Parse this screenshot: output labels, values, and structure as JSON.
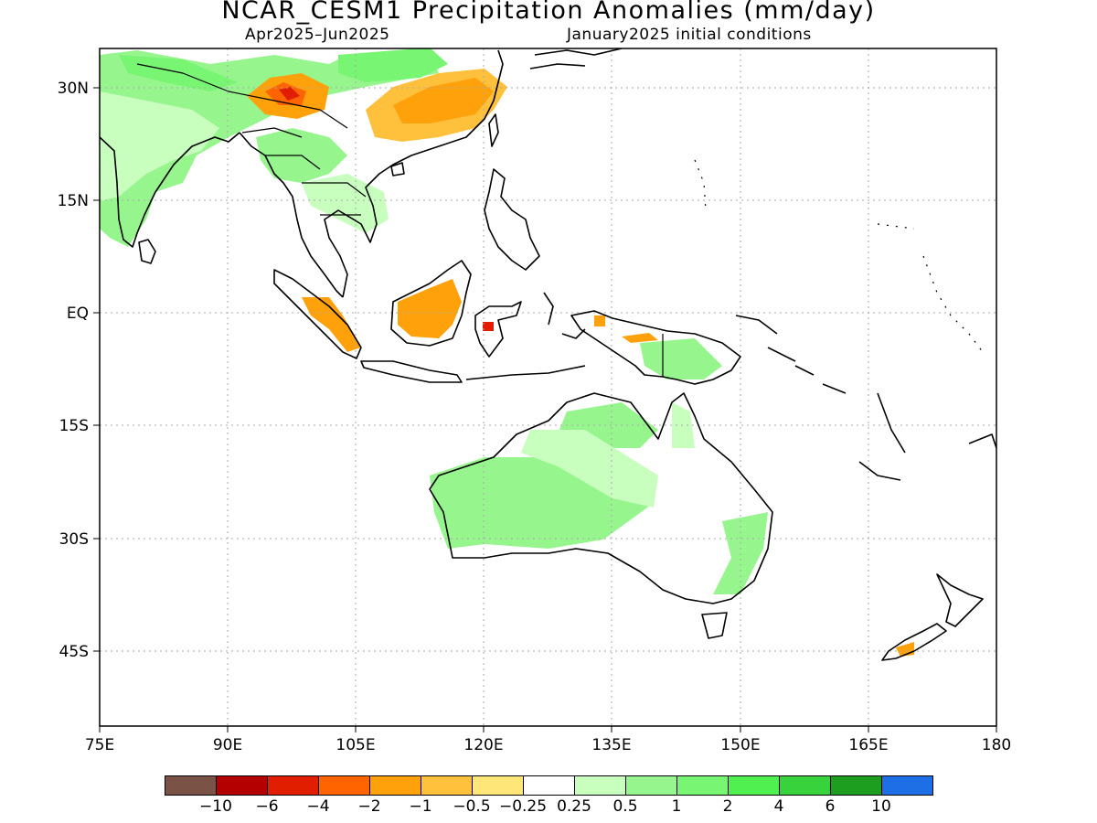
{
  "title": "NCAR_CESM1 Precipitation Anomalies (mm/day)",
  "subtitle_left": "Apr2025–Jun2025",
  "subtitle_right": "January2025 initial conditions",
  "lat_ticks": [
    "30N",
    "15N",
    "EQ",
    "15S",
    "30S",
    "45S"
  ],
  "lon_ticks": [
    "75E",
    "90E",
    "105E",
    "120E",
    "135E",
    "150E",
    "165E",
    "180"
  ],
  "colorbar": {
    "colors": [
      "#7a5246",
      "#b40000",
      "#e11e00",
      "#ff6400",
      "#ffa10a",
      "#ffc03c",
      "#ffe678",
      "#ffffff",
      "#c8ffbe",
      "#96f58c",
      "#78f573",
      "#50f050",
      "#37d23c",
      "#1e9e1e",
      "#1e6ee6"
    ],
    "labels": [
      "−10",
      "−6",
      "−4",
      "−2",
      "−1",
      "−0.5",
      "−0.25",
      "0.25",
      "0.5",
      "1",
      "2",
      "4",
      "6",
      "10"
    ]
  },
  "map_extent": {
    "lon": [
      75,
      180
    ],
    "lat": [
      -55,
      35
    ]
  },
  "colors": {
    "coastline": "#000000",
    "gridline": "#aaaaaa",
    "wet": "#96f58c",
    "dry": "#ffa10a"
  }
}
